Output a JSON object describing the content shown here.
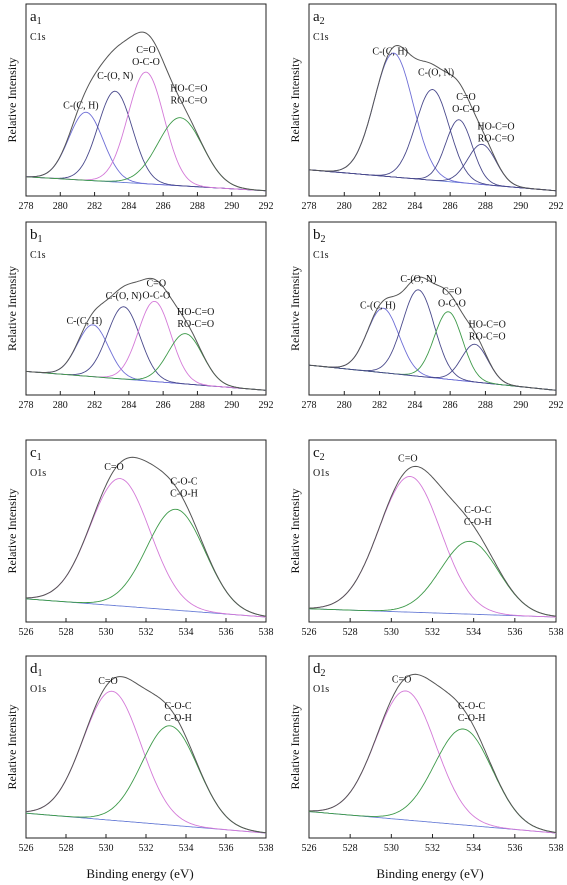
{
  "figure_xlabel": "Binding energy (eV)",
  "colors": {
    "envelope": "#555555",
    "baseline": "#6b7fd7",
    "C-(C, H)": "#6f6fd6",
    "C-(O, N)": "#4a4a8c",
    "C=O / O-C-O": "#d47ad8",
    "HO-C=O / RO-C=O": "#3e9a4a",
    "O1s C=O": "#d47ad8",
    "C-O-C / C-O-H": "#3e9a4a"
  },
  "chart_data": [
    {
      "type": "line",
      "panel": "a",
      "sub": "1",
      "core": "C1s",
      "ylabel": "Relative Intensity",
      "xlim": [
        278,
        292
      ],
      "xreversed": false,
      "xticks": [
        278,
        280,
        282,
        284,
        286,
        288,
        290,
        292
      ],
      "baseline": [
        [
          278,
          0.06
        ],
        [
          292,
          -0.02
        ]
      ],
      "peaks": [
        {
          "label": [
            "C-(C, H)"
          ],
          "color_key": "C-(C, H)",
          "center": 281.5,
          "height": 0.39,
          "width": 1.0,
          "label_at": [
            281.2,
            0.45
          ]
        },
        {
          "label": [
            "C-(O, N)"
          ],
          "color_key": "C-(O, N)",
          "center": 283.2,
          "height": 0.52,
          "width": 1.0,
          "label_at": [
            283.2,
            0.62
          ]
        },
        {
          "label": [
            "C=O",
            "O-C-O"
          ],
          "color_key": "C=O / O-C-O",
          "center": 285.0,
          "height": 0.64,
          "width": 1.05,
          "label_at": [
            285.0,
            0.77
          ]
        },
        {
          "label": [
            "HO-C=O",
            "RO-C=O"
          ],
          "color_key": "HO-C=O / RO-C=O",
          "center": 287.0,
          "height": 0.39,
          "width": 1.3,
          "label_at": [
            287.5,
            0.55
          ]
        }
      ]
    },
    {
      "type": "line",
      "panel": "a",
      "sub": "2",
      "core": "C1s",
      "ylabel": "Relative Intensity",
      "xlim": [
        278,
        292
      ],
      "xreversed": false,
      "xticks": [
        278,
        280,
        282,
        284,
        286,
        288,
        290,
        292
      ],
      "baseline": [
        [
          278,
          0.1
        ],
        [
          292,
          -0.02
        ]
      ],
      "peaks": [
        {
          "label": [
            "C-(C, H)"
          ],
          "color_key": "C-(C, H)",
          "center": 282.8,
          "height": 0.71,
          "width": 1.1,
          "label_at": [
            282.6,
            0.76
          ]
        },
        {
          "label": [
            "C-(O, N)"
          ],
          "color_key": "C-(O, N)",
          "center": 285.0,
          "height": 0.52,
          "width": 0.95,
          "label_at": [
            285.2,
            0.64
          ]
        },
        {
          "label": [
            "C=O",
            "O-C-O"
          ],
          "color_key": "C-(O, N)",
          "center": 286.5,
          "height": 0.36,
          "width": 0.75,
          "label_at": [
            286.9,
            0.5
          ]
        },
        {
          "label": [
            "HO-C=O",
            "RO-C=O"
          ],
          "color_key": "C-(O, N)",
          "center": 287.8,
          "height": 0.23,
          "width": 0.8,
          "label_at": [
            288.6,
            0.33
          ]
        }
      ]
    },
    {
      "type": "line",
      "panel": "b",
      "sub": "1",
      "core": "C1s",
      "ylabel": "Relative Intensity",
      "xlim": [
        278,
        292
      ],
      "xreversed": false,
      "xticks": [
        278,
        280,
        282,
        284,
        286,
        288,
        290,
        292
      ],
      "baseline": [
        [
          278,
          0.1
        ],
        [
          292,
          -0.02
        ]
      ],
      "peaks": [
        {
          "label": [
            "C-(C, H)"
          ],
          "color_key": "C-(C, H)",
          "center": 281.9,
          "height": 0.33,
          "width": 0.9,
          "label_at": [
            281.4,
            0.4
          ]
        },
        {
          "label": [
            "C-(O, N)"
          ],
          "color_key": "C-(O, N)",
          "center": 283.7,
          "height": 0.46,
          "width": 0.95,
          "label_at": [
            283.7,
            0.56
          ]
        },
        {
          "label": [
            "C=O",
            "O-C-O"
          ],
          "color_key": "C=O / O-C-O",
          "center": 285.5,
          "height": 0.51,
          "width": 0.95,
          "label_at": [
            285.6,
            0.64
          ]
        },
        {
          "label": [
            "HO-C=O",
            "RO-C=O"
          ],
          "color_key": "HO-C=O / RO-C=O",
          "center": 287.3,
          "height": 0.32,
          "width": 1.0,
          "label_at": [
            287.9,
            0.46
          ]
        }
      ]
    },
    {
      "type": "line",
      "panel": "b",
      "sub": "2",
      "core": "C1s",
      "ylabel": "Relative Intensity",
      "xlim": [
        278,
        292
      ],
      "xreversed": false,
      "xticks": [
        278,
        280,
        282,
        284,
        286,
        288,
        290,
        292
      ],
      "baseline": [
        [
          278,
          0.14
        ],
        [
          292,
          -0.02
        ]
      ],
      "peaks": [
        {
          "label": [
            "C-(C, H)"
          ],
          "color_key": "C-(C, H)",
          "center": 282.2,
          "height": 0.41,
          "width": 0.9,
          "label_at": [
            281.9,
            0.5
          ]
        },
        {
          "label": [
            "C-(O, N)"
          ],
          "color_key": "C-(O, N)",
          "center": 284.2,
          "height": 0.55,
          "width": 0.9,
          "label_at": [
            284.2,
            0.67
          ]
        },
        {
          "label": [
            "C=O",
            "O-C-O"
          ],
          "color_key": "HO-C=O / RO-C=O",
          "center": 285.9,
          "height": 0.43,
          "width": 0.8,
          "label_at": [
            286.1,
            0.59
          ]
        },
        {
          "label": [
            "HO-C=O",
            "RO-C=O"
          ],
          "color_key": "C-(O, N)",
          "center": 287.4,
          "height": 0.24,
          "width": 0.75,
          "label_at": [
            288.1,
            0.38
          ]
        }
      ]
    },
    {
      "type": "line",
      "panel": "c",
      "sub": "1",
      "core": "O1s",
      "ylabel": "Relative Intensity",
      "xlim": [
        526,
        538
      ],
      "xreversed": false,
      "xticks": [
        526,
        528,
        530,
        532,
        534,
        536,
        538
      ],
      "baseline": [
        [
          526,
          0.09
        ],
        [
          538,
          -0.02
        ]
      ],
      "peaks": [
        {
          "label": [
            "C=O"
          ],
          "color_key": "O1s C=O",
          "center": 530.7,
          "height": 0.77,
          "width": 1.5,
          "label_at": [
            530.4,
            0.87
          ]
        },
        {
          "label": [
            "C-O-C",
            "C-O-H"
          ],
          "color_key": "C-O-C / C-O-H",
          "center": 533.5,
          "height": 0.61,
          "width": 1.45,
          "label_at": [
            533.9,
            0.78
          ]
        }
      ]
    },
    {
      "type": "line",
      "panel": "c",
      "sub": "2",
      "core": "O1s",
      "ylabel": "Relative Intensity",
      "xlim": [
        526,
        538
      ],
      "xreversed": false,
      "xticks": [
        526,
        528,
        530,
        532,
        534,
        536,
        538
      ],
      "baseline": [
        [
          526,
          0.03
        ],
        [
          538,
          -0.02
        ]
      ],
      "peaks": [
        {
          "label": [
            "C=O"
          ],
          "color_key": "O1s C=O",
          "center": 530.9,
          "height": 0.82,
          "width": 1.5,
          "label_at": [
            530.8,
            0.92
          ]
        },
        {
          "label": [
            "C-O-C",
            "C-O-H"
          ],
          "color_key": "C-O-C / C-O-H",
          "center": 533.8,
          "height": 0.44,
          "width": 1.4,
          "label_at": [
            534.2,
            0.61
          ]
        }
      ]
    },
    {
      "type": "line",
      "panel": "d",
      "sub": "1",
      "core": "O1s",
      "ylabel": "Relative Intensity",
      "xlim": [
        526,
        538
      ],
      "xreversed": false,
      "xticks": [
        526,
        528,
        530,
        532,
        534,
        536,
        538
      ],
      "baseline": [
        [
          526,
          0.1
        ],
        [
          538,
          -0.02
        ]
      ],
      "peaks": [
        {
          "label": [
            "C=O"
          ],
          "color_key": "O1s C=O",
          "center": 530.3,
          "height": 0.78,
          "width": 1.45,
          "label_at": [
            530.1,
            0.88
          ]
        },
        {
          "label": [
            "C-O-C",
            "C-O-H"
          ],
          "color_key": "C-O-C / C-O-H",
          "center": 533.2,
          "height": 0.6,
          "width": 1.4,
          "label_at": [
            533.6,
            0.73
          ]
        }
      ]
    },
    {
      "type": "line",
      "panel": "d",
      "sub": "2",
      "core": "O1s",
      "ylabel": "Relative Intensity",
      "xlim": [
        526,
        538
      ],
      "xreversed": false,
      "xticks": [
        526,
        528,
        530,
        532,
        534,
        536,
        538
      ],
      "baseline": [
        [
          526,
          0.11
        ],
        [
          538,
          -0.02
        ]
      ],
      "peaks": [
        {
          "label": [
            "C=O"
          ],
          "color_key": "O1s C=O",
          "center": 530.7,
          "height": 0.78,
          "width": 1.45,
          "label_at": [
            530.5,
            0.89
          ]
        },
        {
          "label": [
            "C-O-C",
            "C-O-H"
          ],
          "color_key": "C-O-C / C-O-H",
          "center": 533.5,
          "height": 0.58,
          "width": 1.4,
          "label_at": [
            533.9,
            0.73
          ]
        }
      ]
    }
  ]
}
